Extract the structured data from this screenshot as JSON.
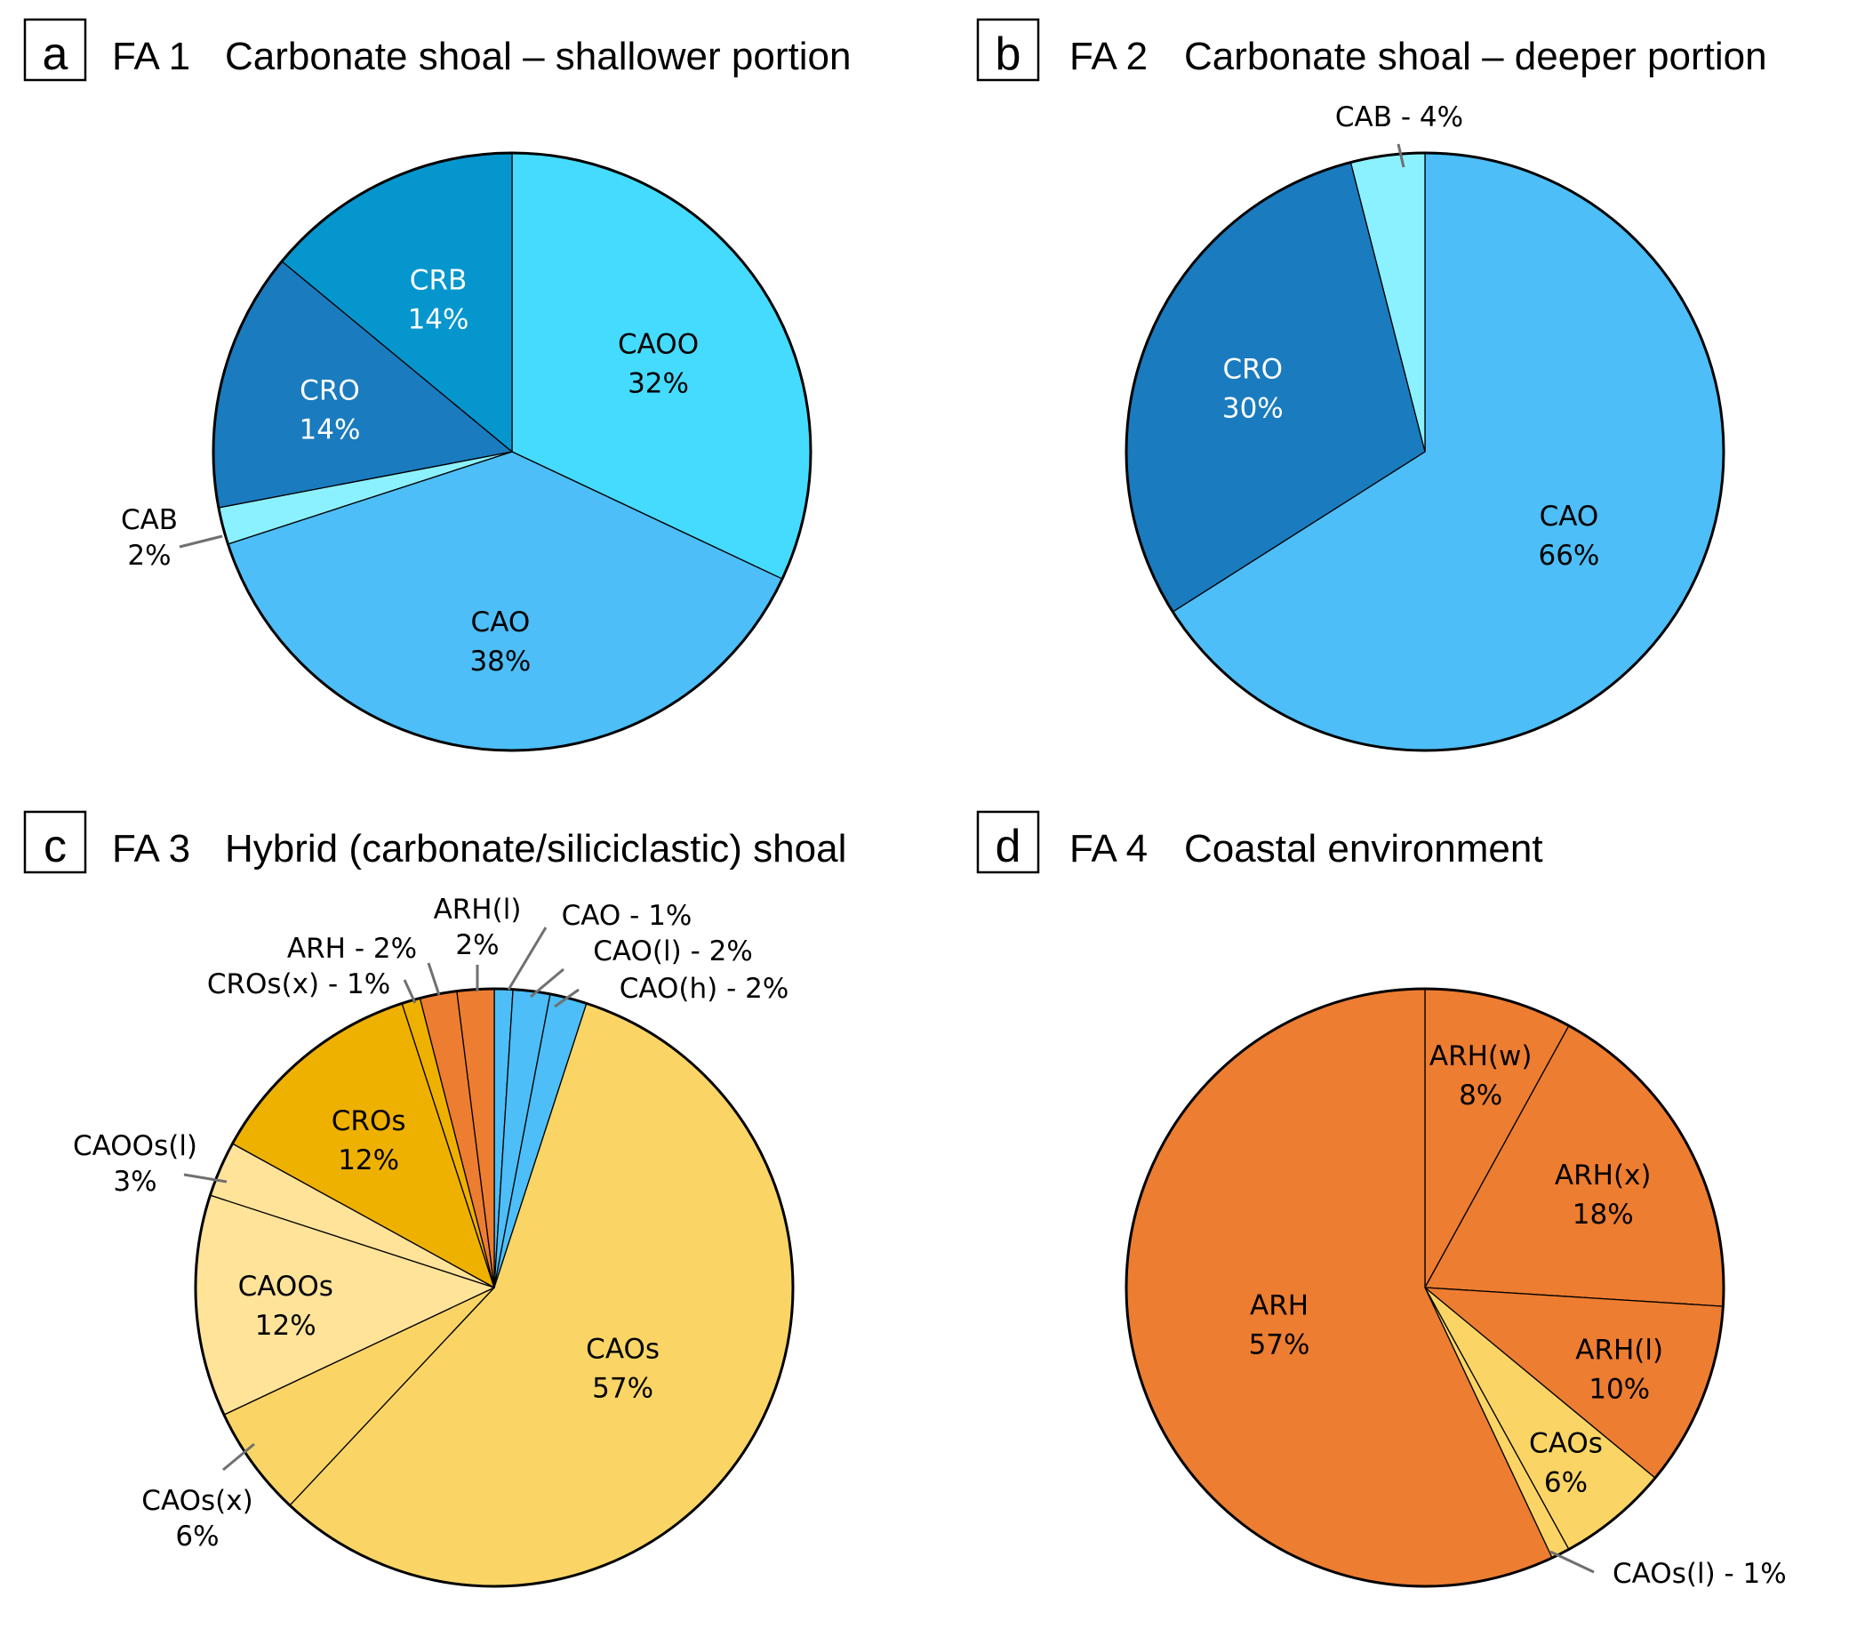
{
  "chart_data": [
    {
      "type": "pie",
      "panel": "a",
      "title": "FA 1  Carbonate shoal – shallower portion",
      "start": "12 o'clock, clockwise",
      "slices": [
        {
          "name": "CAOO",
          "value": 32,
          "percent_label": "32%",
          "color": "#45DBFF",
          "text_color": "#000000",
          "label_style": "inside"
        },
        {
          "name": "CAO",
          "value": 38,
          "percent_label": "38%",
          "color": "#4DBEF7",
          "text_color": "#000000",
          "label_style": "inside"
        },
        {
          "name": "CAB",
          "value": 2,
          "percent_label": "2%",
          "color": "#8CF1FF",
          "text_color": "#000000",
          "label_style": "outside-stacked"
        },
        {
          "name": "CRO",
          "value": 14,
          "percent_label": "14%",
          "color": "#1A7BBF",
          "text_color": "#FFFFFF",
          "label_style": "inside"
        },
        {
          "name": "CRB",
          "value": 14,
          "percent_label": "14%",
          "color": "#0596CE",
          "text_color": "#FFFFFF",
          "label_style": "inside"
        }
      ]
    },
    {
      "type": "pie",
      "panel": "b",
      "title": "FA 2  Carbonate shoal – deeper portion",
      "start": "12 o'clock, clockwise",
      "slices": [
        {
          "name": "CAO",
          "value": 66,
          "percent_label": "66%",
          "color": "#4DBEF7",
          "text_color": "#000000",
          "label_style": "inside"
        },
        {
          "name": "CRO",
          "value": 30,
          "percent_label": "30%",
          "color": "#1A7BBF",
          "text_color": "#FFFFFF",
          "label_style": "inside"
        },
        {
          "name": "CAB",
          "value": 4,
          "percent_label": "4%",
          "color": "#8CF1FF",
          "text_color": "#000000",
          "label_style": "outside-inline"
        }
      ]
    },
    {
      "type": "pie",
      "panel": "c",
      "title": "FA 3  Hybrid (carbonate/siliciclastic) shoal",
      "start": "12 o'clock, clockwise",
      "slices": [
        {
          "name": "CAO",
          "value": 1,
          "percent_label": "1%",
          "color": "#4DBEF7",
          "text_color": "#000000",
          "label_style": "outside-inline"
        },
        {
          "name": "CAO(l)",
          "value": 2,
          "percent_label": "2%",
          "color": "#4DBEF7",
          "text_color": "#000000",
          "label_style": "outside-inline"
        },
        {
          "name": "CAO(h)",
          "value": 2,
          "percent_label": "2%",
          "color": "#4DBEF7",
          "text_color": "#000000",
          "label_style": "outside-inline"
        },
        {
          "name": "CAOs",
          "value": 57,
          "percent_label": "57%",
          "color": "#FAD565",
          "text_color": "#000000",
          "label_style": "inside"
        },
        {
          "name": "CAOs(x)",
          "value": 6,
          "percent_label": "6%",
          "color": "#FAD565",
          "text_color": "#000000",
          "label_style": "outside-stacked"
        },
        {
          "name": "CAOOs",
          "value": 12,
          "percent_label": "12%",
          "color": "#FFE399",
          "text_color": "#000000",
          "label_style": "inside"
        },
        {
          "name": "CAOOs(l)",
          "value": 3,
          "percent_label": "3%",
          "color": "#FFE399",
          "text_color": "#000000",
          "label_style": "outside-stacked"
        },
        {
          "name": "CROs",
          "value": 12,
          "percent_label": "12%",
          "color": "#EFB100",
          "text_color": "#000000",
          "label_style": "inside"
        },
        {
          "name": "CROs(x)",
          "value": 1,
          "percent_label": "1%",
          "color": "#EFB100",
          "text_color": "#000000",
          "label_style": "outside-inline"
        },
        {
          "name": "ARH",
          "value": 2,
          "percent_label": "2%",
          "color": "#ED7D31",
          "text_color": "#000000",
          "label_style": "outside-inline"
        },
        {
          "name": "ARH(l)",
          "value": 2,
          "percent_label": "2%",
          "color": "#ED7D31",
          "text_color": "#000000",
          "label_style": "outside-stacked"
        }
      ]
    },
    {
      "type": "pie",
      "panel": "d",
      "title": "FA 4  Coastal environment",
      "start": "12 o'clock, clockwise",
      "slices": [
        {
          "name": "ARH(w)",
          "value": 8,
          "percent_label": "8%",
          "color": "#ED7D31",
          "text_color": "#000000",
          "label_style": "inside"
        },
        {
          "name": "ARH(x)",
          "value": 18,
          "percent_label": "18%",
          "color": "#ED7D31",
          "text_color": "#000000",
          "label_style": "inside"
        },
        {
          "name": "ARH(l)",
          "value": 10,
          "percent_label": "10%",
          "color": "#ED7D31",
          "text_color": "#000000",
          "label_style": "inside"
        },
        {
          "name": "CAOs",
          "value": 6,
          "percent_label": "6%",
          "color": "#FAD565",
          "text_color": "#000000",
          "label_style": "inside"
        },
        {
          "name": "CAOs(l)",
          "value": 1,
          "percent_label": "1%",
          "color": "#FAD565",
          "text_color": "#000000",
          "label_style": "outside-inline"
        },
        {
          "name": "ARH",
          "value": 57,
          "percent_label": "57%",
          "color": "#ED7D31",
          "text_color": "#000000",
          "label_style": "inside"
        }
      ]
    }
  ],
  "panels": [
    {
      "letter": "a",
      "fa": "FA 1",
      "subtitle": "Carbonate shoal – shallower portion"
    },
    {
      "letter": "b",
      "fa": "FA 2",
      "subtitle": "Carbonate shoal – deeper portion"
    },
    {
      "letter": "c",
      "fa": "FA 3",
      "subtitle": "Hybrid (carbonate/siliciclastic) shoal"
    },
    {
      "letter": "d",
      "fa": "FA 4",
      "subtitle": "Coastal environment"
    }
  ],
  "colors": {
    "outline": "#000000",
    "leader_line": "#707070"
  }
}
